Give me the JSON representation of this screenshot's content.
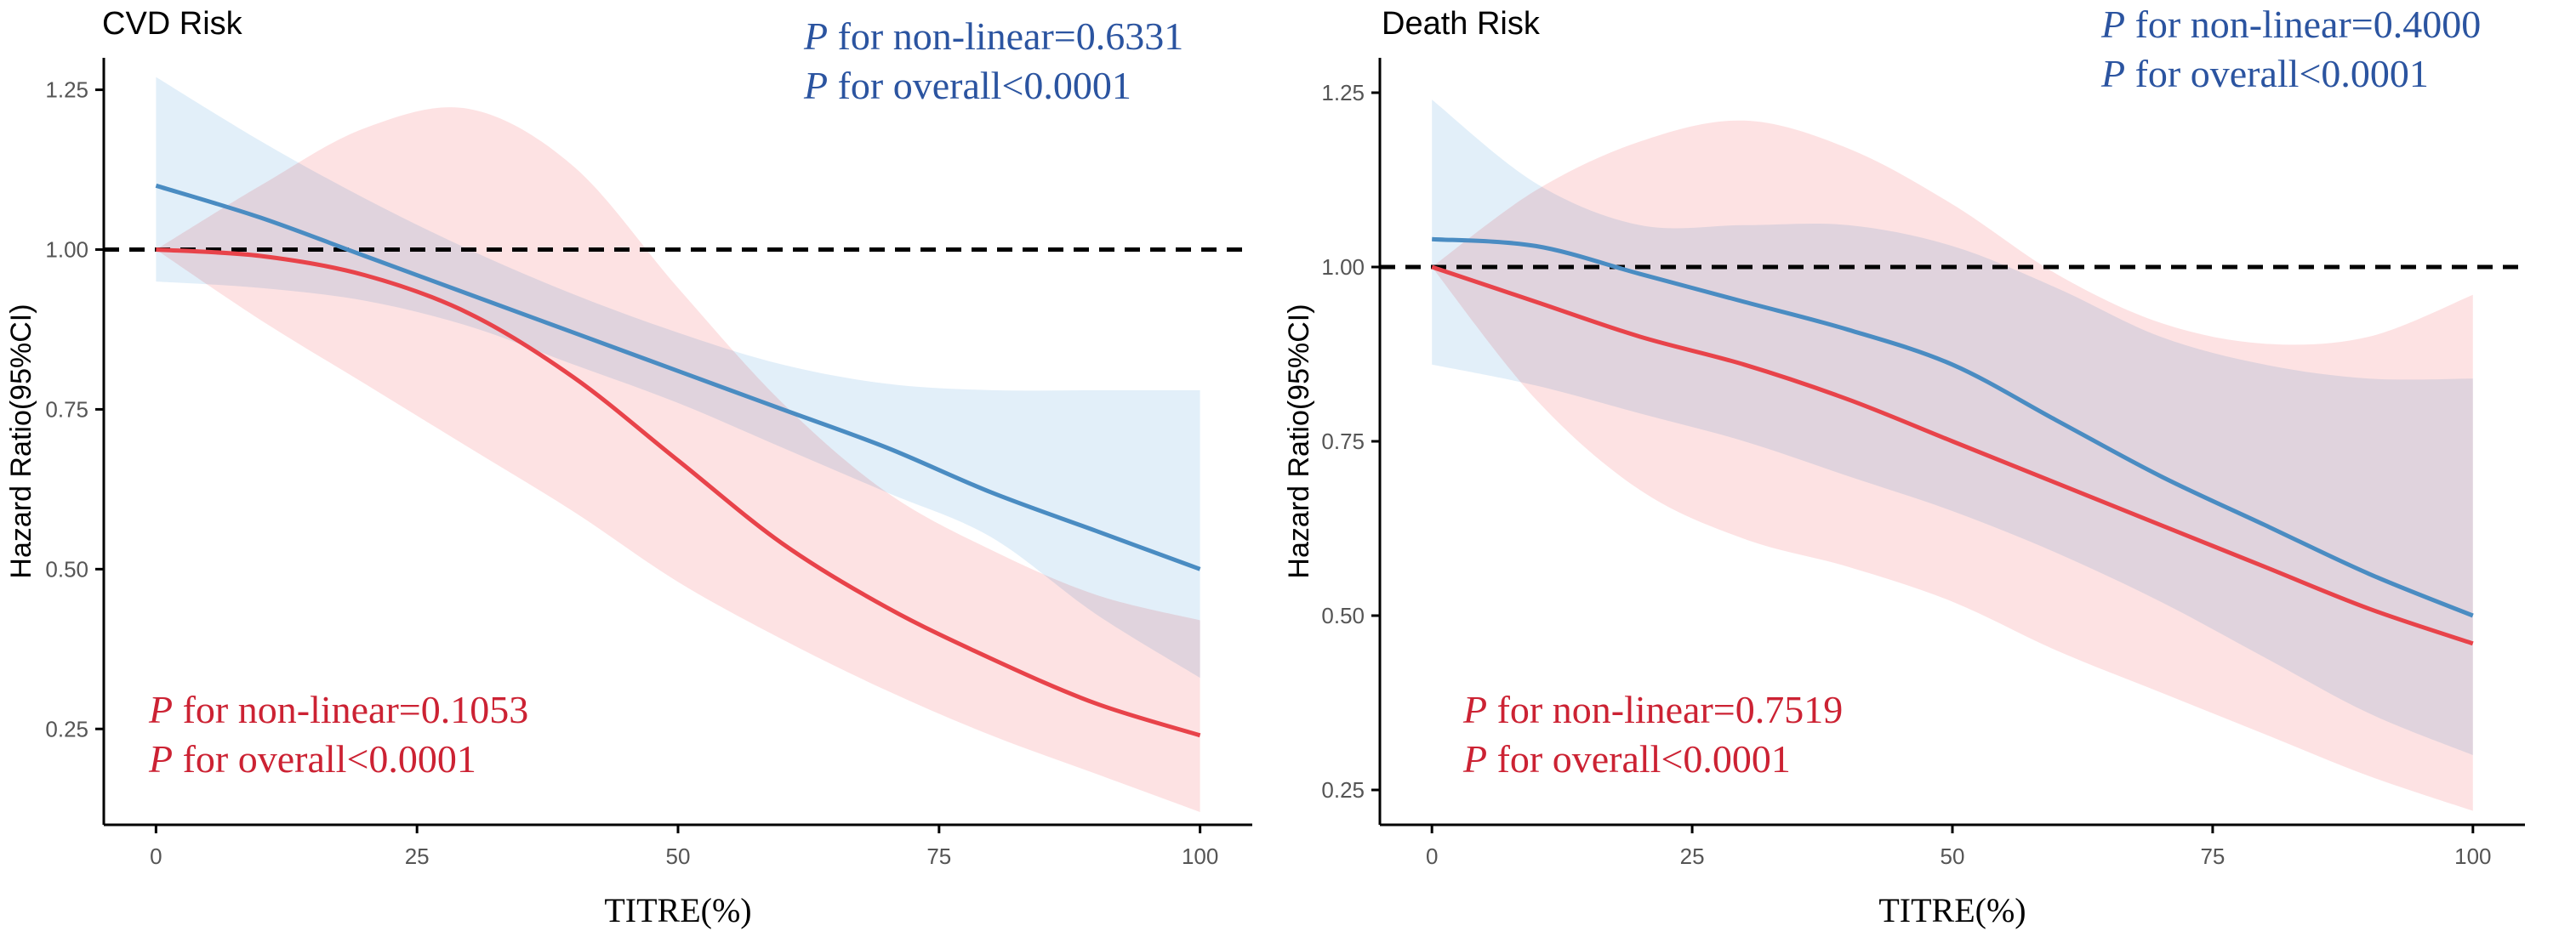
{
  "colors": {
    "blue_line": "#4a8cc2",
    "blue_band": "#d6e8f7",
    "red_line": "#e8434a",
    "red_band": "#fcd8da",
    "blue_text": "#2b54a0",
    "red_text": "#cc2233",
    "axis": "#000000",
    "tick_text": "#555555"
  },
  "chart_data": [
    {
      "type": "line",
      "title": "CVD Risk",
      "xlabel": "TITRE(%)",
      "ylabel": "Hazard Ratio(95%CI)",
      "xlim": [
        -5,
        105
      ],
      "ylim": [
        0.1,
        1.3
      ],
      "xticks": [
        "0",
        "25",
        "50",
        "75",
        "100"
      ],
      "yticks": [
        "0.25",
        "0.50",
        "0.75",
        "1.00",
        "1.25"
      ],
      "reference_line": 1.0,
      "x": [
        0,
        10,
        20,
        30,
        40,
        50,
        60,
        70,
        80,
        90,
        100
      ],
      "series": [
        {
          "name": "blue",
          "color_key": "blue",
          "values": [
            1.1,
            1.05,
            0.99,
            0.93,
            0.87,
            0.81,
            0.75,
            0.69,
            0.62,
            0.56,
            0.5
          ],
          "lower": [
            0.95,
            0.94,
            0.92,
            0.88,
            0.82,
            0.76,
            0.69,
            0.62,
            0.55,
            0.43,
            0.33
          ],
          "upper": [
            1.27,
            1.17,
            1.08,
            1.0,
            0.93,
            0.87,
            0.82,
            0.79,
            0.78,
            0.78,
            0.78
          ]
        },
        {
          "name": "red",
          "color_key": "red",
          "values": [
            1.0,
            0.99,
            0.96,
            0.9,
            0.8,
            0.67,
            0.54,
            0.44,
            0.36,
            0.29,
            0.24
          ],
          "lower": [
            1.0,
            0.89,
            0.79,
            0.69,
            0.59,
            0.48,
            0.39,
            0.31,
            0.24,
            0.18,
            0.12
          ],
          "upper": [
            1.0,
            1.1,
            1.19,
            1.22,
            1.13,
            0.94,
            0.76,
            0.62,
            0.53,
            0.46,
            0.42
          ]
        }
      ],
      "annotations": [
        {
          "color_key": "blue",
          "position": "top-right",
          "lines": [
            {
              "p": "P",
              "text": " for non-linear=0.6331"
            },
            {
              "p": "P",
              "text": " for overall<0.0001"
            }
          ]
        },
        {
          "color_key": "red",
          "position": "bottom-left",
          "lines": [
            {
              "p": "P",
              "text": " for non-linear=0.1053"
            },
            {
              "p": "P",
              "text": " for overall<0.0001"
            }
          ]
        }
      ]
    },
    {
      "type": "line",
      "title": "Death Risk",
      "xlabel": "TITRE(%)",
      "ylabel": "Hazard Ratio(95%CI)",
      "xlim": [
        -5,
        105
      ],
      "ylim": [
        0.2,
        1.3
      ],
      "xticks": [
        "0",
        "25",
        "50",
        "75",
        "100"
      ],
      "yticks": [
        "0.25",
        "0.50",
        "0.75",
        "1.00",
        "1.25"
      ],
      "reference_line": 1.0,
      "x": [
        0,
        10,
        20,
        30,
        40,
        50,
        60,
        70,
        80,
        90,
        100
      ],
      "series": [
        {
          "name": "blue",
          "color_key": "blue",
          "values": [
            1.04,
            1.03,
            0.99,
            0.95,
            0.91,
            0.86,
            0.78,
            0.7,
            0.63,
            0.56,
            0.5
          ],
          "lower": [
            0.86,
            0.83,
            0.79,
            0.75,
            0.7,
            0.65,
            0.59,
            0.52,
            0.44,
            0.36,
            0.3
          ],
          "upper": [
            1.24,
            1.12,
            1.06,
            1.06,
            1.06,
            1.03,
            0.97,
            0.9,
            0.86,
            0.84,
            0.84
          ]
        },
        {
          "name": "red",
          "color_key": "red",
          "values": [
            1.0,
            0.95,
            0.9,
            0.86,
            0.81,
            0.75,
            0.69,
            0.63,
            0.57,
            0.51,
            0.46
          ],
          "lower": [
            1.0,
            0.81,
            0.68,
            0.61,
            0.57,
            0.52,
            0.45,
            0.39,
            0.33,
            0.27,
            0.22
          ],
          "upper": [
            1.0,
            1.11,
            1.18,
            1.21,
            1.17,
            1.09,
            0.99,
            0.92,
            0.89,
            0.9,
            0.96
          ]
        }
      ],
      "annotations": [
        {
          "color_key": "blue",
          "position": "top-right",
          "lines": [
            {
              "p": "P",
              "text": " for non-linear=0.4000"
            },
            {
              "p": "P",
              "text": " for overall<0.0001"
            }
          ]
        },
        {
          "color_key": "red",
          "position": "bottom-left",
          "lines": [
            {
              "p": "P",
              "text": " for non-linear=0.7519"
            },
            {
              "p": "P",
              "text": " for overall<0.0001"
            }
          ]
        }
      ]
    }
  ]
}
